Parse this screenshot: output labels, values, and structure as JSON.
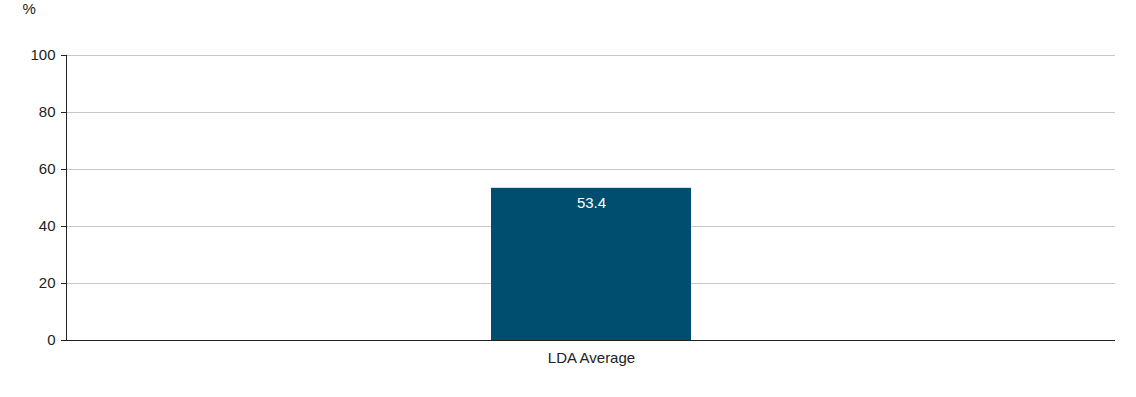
{
  "chart_data": {
    "type": "bar",
    "ylabel": "%",
    "categories": [
      "LDA Average"
    ],
    "values": [
      53.4
    ],
    "color": "#004e6f",
    "ylim": [
      0,
      100
    ],
    "yticks": [
      0,
      20,
      40,
      60,
      80,
      100
    ],
    "grid": true,
    "data_labels": true
  }
}
